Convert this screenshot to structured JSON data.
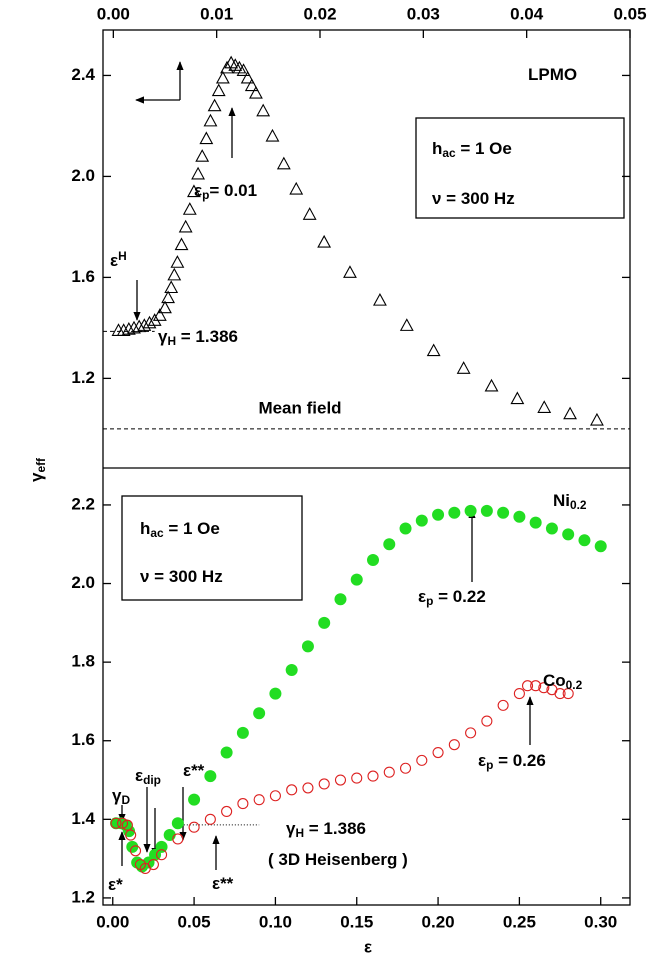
{
  "chart_data": [
    {
      "type": "scatter",
      "xlim": [
        -0.001,
        0.05
      ],
      "ylim": [
        0.845,
        2.58
      ],
      "xticks": [
        {
          "value": 0,
          "label": "0.00"
        },
        0.01,
        0.02,
        0.03,
        0.04,
        0.05
      ],
      "yticks": [
        1.2,
        1.6,
        {
          "value": 2,
          "label": "2.0"
        },
        2.4
      ],
      "series": [
        {
          "color": "#000000",
          "marker": "open-triangle",
          "x": [
            0.0005,
            0.001,
            0.0015,
            0.002,
            0.0025,
            0.003,
            0.0035,
            0.004,
            0.0045,
            0.005,
            0.0053,
            0.0056,
            0.0059,
            0.0062,
            0.0066,
            0.007,
            0.0074,
            0.0078,
            0.0082,
            0.0086,
            0.009,
            0.0094,
            0.0098,
            0.0102,
            0.0106,
            0.011,
            0.0114,
            0.0118,
            0.0122,
            0.0126,
            0.013,
            0.0134,
            0.0138,
            0.0145,
            0.0154,
            0.0165,
            0.0177,
            0.019,
            0.0204,
            0.0229,
            0.0258,
            0.0284,
            0.031,
            0.0339,
            0.0366,
            0.0391,
            0.0417,
            0.0442,
            0.0468
          ],
          "values": [
            1.39,
            1.39,
            1.395,
            1.4,
            1.405,
            1.41,
            1.42,
            1.43,
            1.45,
            1.48,
            1.52,
            1.56,
            1.61,
            1.66,
            1.73,
            1.8,
            1.87,
            1.94,
            2.01,
            2.08,
            2.15,
            2.22,
            2.28,
            2.34,
            2.39,
            2.43,
            2.45,
            2.44,
            2.43,
            2.42,
            2.39,
            2.36,
            2.33,
            2.26,
            2.16,
            2.05,
            1.95,
            1.85,
            1.74,
            1.62,
            1.51,
            1.41,
            1.31,
            1.24,
            1.17,
            1.12,
            1.085,
            1.06,
            1.035
          ]
        }
      ],
      "reference_lines": [
        {
          "value": 1.0,
          "label": "Mean field",
          "style": "dashed"
        },
        {
          "value": 1.386,
          "style": "dashed",
          "from": -0.001,
          "to": 0.004
        }
      ],
      "annotations": [
        {
          "parts": [
            {
              "text": "LPMO"
            }
          ]
        },
        {
          "parts": [
            {
              "text": "h"
            },
            {
              "text": "ac",
              "sub": true
            },
            {
              "text": " = 1 Oe"
            }
          ]
        },
        {
          "parts": [
            {
              "text": "ν  = 300 Hz"
            }
          ]
        },
        {
          "parts": [
            {
              "text": "ε"
            },
            {
              "text": "p",
              "sub": true
            },
            {
              "text": "= 0.01"
            }
          ]
        },
        {
          "parts": [
            {
              "text": "ε"
            },
            {
              "text": "H",
              "sup": true
            }
          ]
        },
        {
          "parts": [
            {
              "text": "γ"
            },
            {
              "text": "H",
              "sub": true
            },
            {
              "text": " =  1.386"
            }
          ]
        }
      ]
    },
    {
      "type": "scatter",
      "xlabel": "ε",
      "ylabel": [
        {
          "text": "γ"
        },
        {
          "text": "eff",
          "sub": true
        }
      ],
      "xlim": [
        -0.006,
        0.318
      ],
      "ylim": [
        1.182,
        2.294
      ],
      "xticks": [
        {
          "value": 0,
          "label": "0.00"
        },
        0.05,
        {
          "value": 0.1,
          "label": "0.10"
        },
        0.15,
        {
          "value": 0.2,
          "label": "0.20"
        },
        0.25,
        {
          "value": 0.3,
          "label": "0.30"
        }
      ],
      "yticks": [
        1.2,
        1.4,
        1.6,
        1.8,
        {
          "value": 2,
          "label": "2.0"
        },
        2.2
      ],
      "series": [
        {
          "color": "#22dd22",
          "marker": "filled-circle",
          "x": [
            0.002,
            0.005,
            0.008,
            0.01,
            0.012,
            0.015,
            0.018,
            0.022,
            0.026,
            0.03,
            0.035,
            0.04,
            0.05,
            0.06,
            0.07,
            0.08,
            0.09,
            0.1,
            0.11,
            0.12,
            0.13,
            0.14,
            0.15,
            0.16,
            0.17,
            0.18,
            0.19,
            0.2,
            0.21,
            0.22,
            0.23,
            0.24,
            0.25,
            0.26,
            0.27,
            0.28,
            0.29,
            0.3
          ],
          "values": [
            1.39,
            1.39,
            1.385,
            1.37,
            1.33,
            1.29,
            1.28,
            1.29,
            1.31,
            1.33,
            1.36,
            1.39,
            1.45,
            1.51,
            1.57,
            1.62,
            1.67,
            1.72,
            1.78,
            1.84,
            1.9,
            1.96,
            2.01,
            2.06,
            2.1,
            2.14,
            2.16,
            2.175,
            2.18,
            2.185,
            2.185,
            2.18,
            2.17,
            2.155,
            2.14,
            2.125,
            2.11,
            2.095
          ]
        },
        {
          "color": "#dd2222",
          "marker": "open-circle",
          "x": [
            0.002,
            0.006,
            0.009,
            0.011,
            0.014,
            0.017,
            0.02,
            0.025,
            0.03,
            0.04,
            0.05,
            0.06,
            0.07,
            0.08,
            0.09,
            0.1,
            0.11,
            0.12,
            0.13,
            0.14,
            0.15,
            0.16,
            0.17,
            0.18,
            0.19,
            0.2,
            0.21,
            0.22,
            0.23,
            0.24,
            0.25,
            0.255,
            0.26,
            0.265,
            0.27,
            0.275,
            0.28
          ],
          "values": [
            1.39,
            1.39,
            1.385,
            1.36,
            1.32,
            1.285,
            1.275,
            1.285,
            1.31,
            1.35,
            1.38,
            1.4,
            1.42,
            1.44,
            1.45,
            1.46,
            1.475,
            1.48,
            1.49,
            1.5,
            1.505,
            1.51,
            1.52,
            1.53,
            1.55,
            1.57,
            1.59,
            1.62,
            1.65,
            1.69,
            1.72,
            1.74,
            1.74,
            1.735,
            1.73,
            1.72,
            1.72
          ]
        }
      ],
      "reference_lines": [
        {
          "value": 1.386,
          "style": "dotted",
          "from": 0.04,
          "to": 0.09
        }
      ],
      "annotations": [
        {
          "parts": [
            {
              "text": "Ni"
            },
            {
              "text": "0.2",
              "sub": true
            }
          ]
        },
        {
          "parts": [
            {
              "text": "h"
            },
            {
              "text": "ac",
              "sub": true
            },
            {
              "text": " = 1 Oe"
            }
          ]
        },
        {
          "parts": [
            {
              "text": "ν  = 300 Hz"
            }
          ]
        },
        {
          "parts": [
            {
              "text": "ε"
            },
            {
              "text": "p",
              "sub": true
            },
            {
              "text": " = 0.22"
            }
          ]
        },
        {
          "parts": [
            {
              "text": "Co"
            },
            {
              "text": "0.2",
              "sub": true
            }
          ]
        },
        {
          "parts": [
            {
              "text": "ε"
            },
            {
              "text": "p",
              "sub": true
            },
            {
              "text": " = 0.26"
            }
          ]
        },
        {
          "parts": [
            {
              "text": "γ"
            },
            {
              "text": "D",
              "sub": true
            }
          ]
        },
        {
          "parts": [
            {
              "text": "ε"
            },
            {
              "text": "dip",
              "sub": true
            }
          ]
        },
        {
          "parts": [
            {
              "text": "ε**"
            }
          ]
        },
        {
          "parts": [
            {
              "text": "γ"
            },
            {
              "text": "H",
              "sub": true
            },
            {
              "text": " =  1.386"
            }
          ]
        },
        {
          "parts": [
            {
              "text": "( 3D Heisenberg )"
            }
          ]
        },
        {
          "parts": [
            {
              "text": "ε**"
            }
          ]
        },
        {
          "parts": [
            {
              "text": "ε*"
            }
          ]
        }
      ]
    }
  ]
}
